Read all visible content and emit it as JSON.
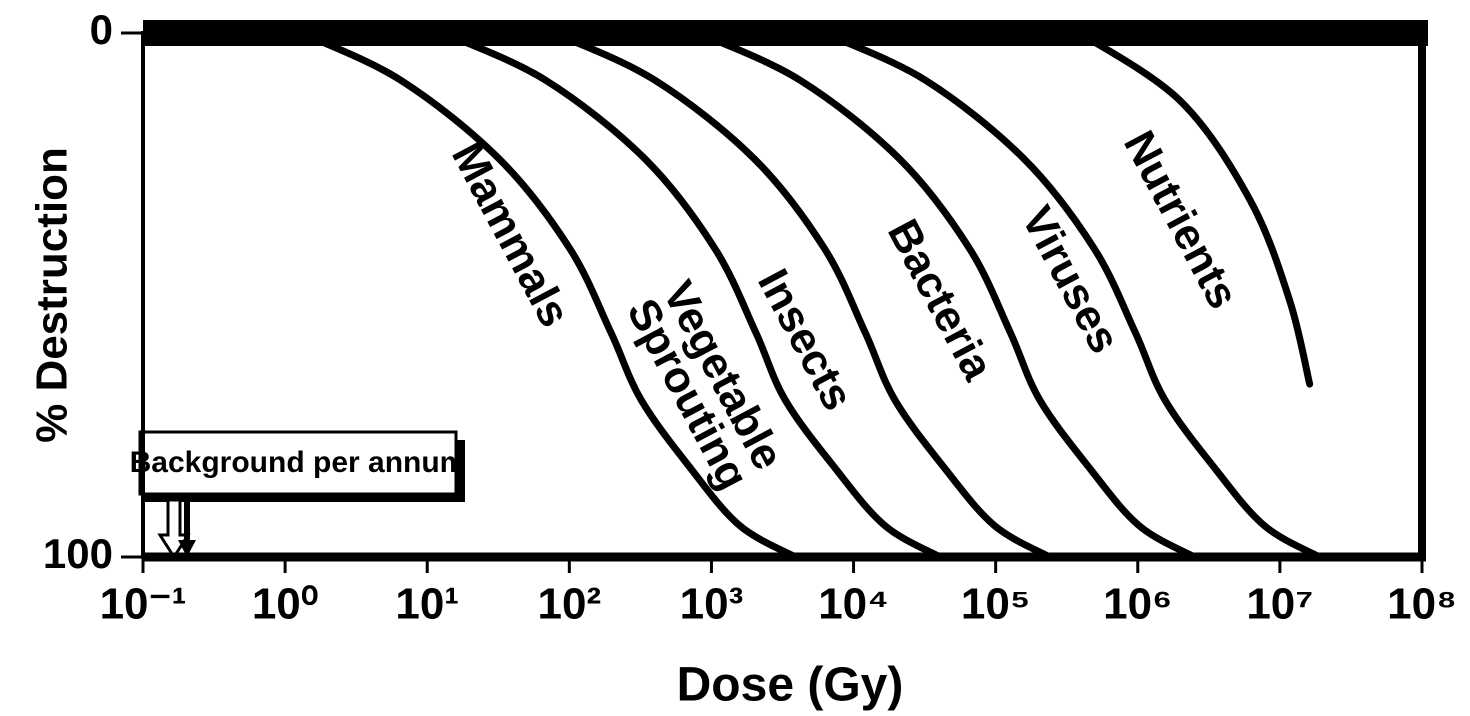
{
  "chart_data": {
    "type": "line",
    "xlabel": "Dose (Gy)",
    "ylabel": "% Destruction",
    "xscale": "log",
    "xlim": [
      0.1,
      100000000
    ],
    "xticks": [
      {
        "value": 0.1,
        "label": "10⁻¹"
      },
      {
        "value": 1,
        "label": "10⁰"
      },
      {
        "value": 10,
        "label": "10¹"
      },
      {
        "value": 100,
        "label": "10²"
      },
      {
        "value": 1000,
        "label": "10³"
      },
      {
        "value": 10000,
        "label": "10⁴"
      },
      {
        "value": 100000,
        "label": "10⁵"
      },
      {
        "value": 1000000,
        "label": "10⁶"
      },
      {
        "value": 10000000,
        "label": "10⁷"
      },
      {
        "value": 100000000,
        "label": "10⁸"
      }
    ],
    "ylim": [
      100,
      0
    ],
    "yticks": [
      0,
      100
    ],
    "grid": false,
    "annotation": "Background per annum",
    "series": [
      {
        "name": "Mammals",
        "color": "#000000",
        "x": [
          1.3,
          6.5,
          32,
          100,
          195,
          320,
          710,
          1580,
          3900
        ],
        "values": [
          0,
          9,
          24,
          41,
          57,
          70,
          83,
          94,
          100
        ]
      },
      {
        "name": "Vegetable\nSprouting",
        "color": "#000000",
        "x": [
          13,
          68,
          340,
          1050,
          2040,
          3300,
          7400,
          16600,
          40700
        ],
        "values": [
          0,
          9,
          24,
          41,
          57,
          70,
          83,
          94,
          100
        ]
      },
      {
        "name": "Insects",
        "color": "#000000",
        "x": [
          78,
          400,
          2000,
          6200,
          12000,
          19500,
          43600,
          98000,
          240000
        ],
        "values": [
          0,
          9,
          24,
          41,
          57,
          70,
          83,
          94,
          100
        ]
      },
      {
        "name": "Bacteria",
        "color": "#000000",
        "x": [
          810,
          4200,
          21000,
          65000,
          126000,
          204000,
          457000,
          1020000,
          2510000
        ],
        "values": [
          0,
          9,
          24,
          41,
          57,
          70,
          83,
          94,
          100
        ]
      },
      {
        "name": "Viruses",
        "color": "#000000",
        "x": [
          6200,
          32000,
          158000,
          490000,
          955000,
          1550000,
          3470000,
          7760000,
          19000000
        ],
        "values": [
          0,
          9,
          24,
          41,
          57,
          70,
          83,
          94,
          100
        ]
      },
      {
        "name": "Nutrients",
        "color": "#000000",
        "x": [
          390000,
          2000000,
          6200000,
          11700000,
          16200000
        ],
        "values": [
          0,
          13,
          32,
          51,
          67
        ]
      }
    ]
  }
}
